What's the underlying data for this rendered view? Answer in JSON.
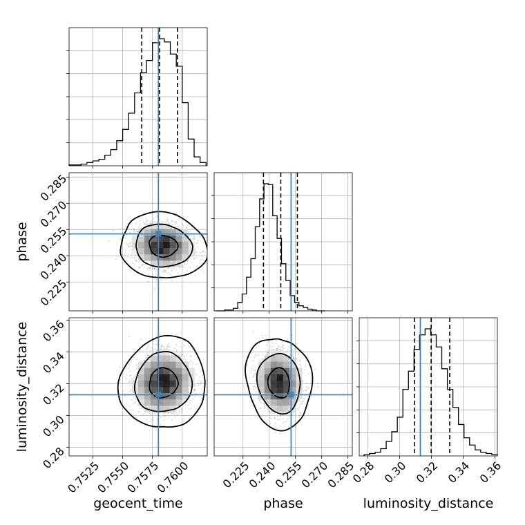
{
  "chart_data": {
    "type": "corner",
    "parameters": [
      {
        "key": "geocent_time",
        "label": "geocent_time",
        "range": [
          0.7505,
          0.7621
        ],
        "ticks": [
          0.7525,
          0.755,
          0.7575,
          0.76
        ],
        "tick_labels": [
          "0.7525",
          "0.7550",
          "0.7575",
          "0.7600"
        ],
        "truth": 0.758,
        "quantiles": [
          0.7566,
          0.7581,
          0.7596
        ],
        "center": 0.7584,
        "spread": 0.0012
      },
      {
        "key": "phase",
        "label": "phase",
        "range": [
          0.2085,
          0.2875
        ],
        "ticks": [
          0.225,
          0.24,
          0.255,
          0.27,
          0.285
        ],
        "tick_labels": [
          "0.225",
          "0.240",
          "0.255",
          "0.270",
          "0.285"
        ],
        "truth": 0.2525,
        "quantiles": [
          0.2367,
          0.2466,
          0.2561
        ],
        "center": 0.2456,
        "spread": 0.0062
      },
      {
        "key": "luminosity_distance",
        "label": "luminosity_distance",
        "range": [
          0.2745,
          0.3615
        ],
        "ticks": [
          0.28,
          0.3,
          0.32,
          0.34,
          0.36
        ],
        "tick_labels": [
          "0.28",
          "0.30",
          "0.32",
          "0.34",
          "0.36"
        ],
        "truth": 0.313,
        "quantiles": [
          0.3094,
          0.3198,
          0.3315
        ],
        "center": 0.3205,
        "spread": 0.0095
      }
    ],
    "histograms": [
      {
        "param": "geocent_time",
        "bin_edges": [
          0.7505,
          0.751,
          0.7515,
          0.752,
          0.7525,
          0.753,
          0.7535,
          0.754,
          0.7545,
          0.755,
          0.7555,
          0.756,
          0.7565,
          0.757,
          0.7575,
          0.758,
          0.7585,
          0.759,
          0.7595,
          0.76,
          0.7605,
          0.761,
          0.7615,
          0.762
        ],
        "counts": [
          1,
          1,
          2,
          4,
          6,
          8,
          13,
          20,
          31,
          45,
          65,
          90,
          115,
          130,
          152,
          157,
          153,
          138,
          123,
          78,
          33,
          11,
          4
        ]
      },
      {
        "param": "phase",
        "bin_edges": [
          0.2095,
          0.212,
          0.2145,
          0.217,
          0.2195,
          0.222,
          0.2245,
          0.227,
          0.2295,
          0.232,
          0.2345,
          0.237,
          0.2395,
          0.242,
          0.2445,
          0.247,
          0.2495,
          0.252,
          0.2545,
          0.257,
          0.2595,
          0.262,
          0.2645,
          0.267,
          0.2695,
          0.272
        ],
        "counts": [
          0,
          0,
          1,
          1,
          3,
          10,
          20,
          40,
          62,
          100,
          133,
          151,
          150,
          113,
          86,
          56,
          36,
          18,
          10,
          6,
          4,
          2,
          1,
          0,
          0
        ]
      },
      {
        "param": "luminosity_distance",
        "bin_edges": [
          0.2775,
          0.281,
          0.2845,
          0.288,
          0.2915,
          0.295,
          0.2985,
          0.302,
          0.3055,
          0.309,
          0.3125,
          0.316,
          0.3195,
          0.323,
          0.3265,
          0.33,
          0.3335,
          0.337,
          0.3405,
          0.344,
          0.3475,
          0.351,
          0.3545,
          0.358,
          0.3615
        ],
        "counts": [
          1,
          2,
          3,
          6,
          12,
          20,
          32,
          55,
          70,
          88,
          100,
          105,
          100,
          90,
          72,
          55,
          40,
          26,
          15,
          9,
          5,
          3,
          2,
          1
        ]
      }
    ],
    "contour_fractions": [
      0.39,
      0.86,
      0.99
    ],
    "colors": {
      "truth": "#4682b4",
      "histogram": "#000000",
      "grid": "#b0b0b0",
      "quantile": "#000000",
      "points": "#555555"
    },
    "grid": true
  }
}
